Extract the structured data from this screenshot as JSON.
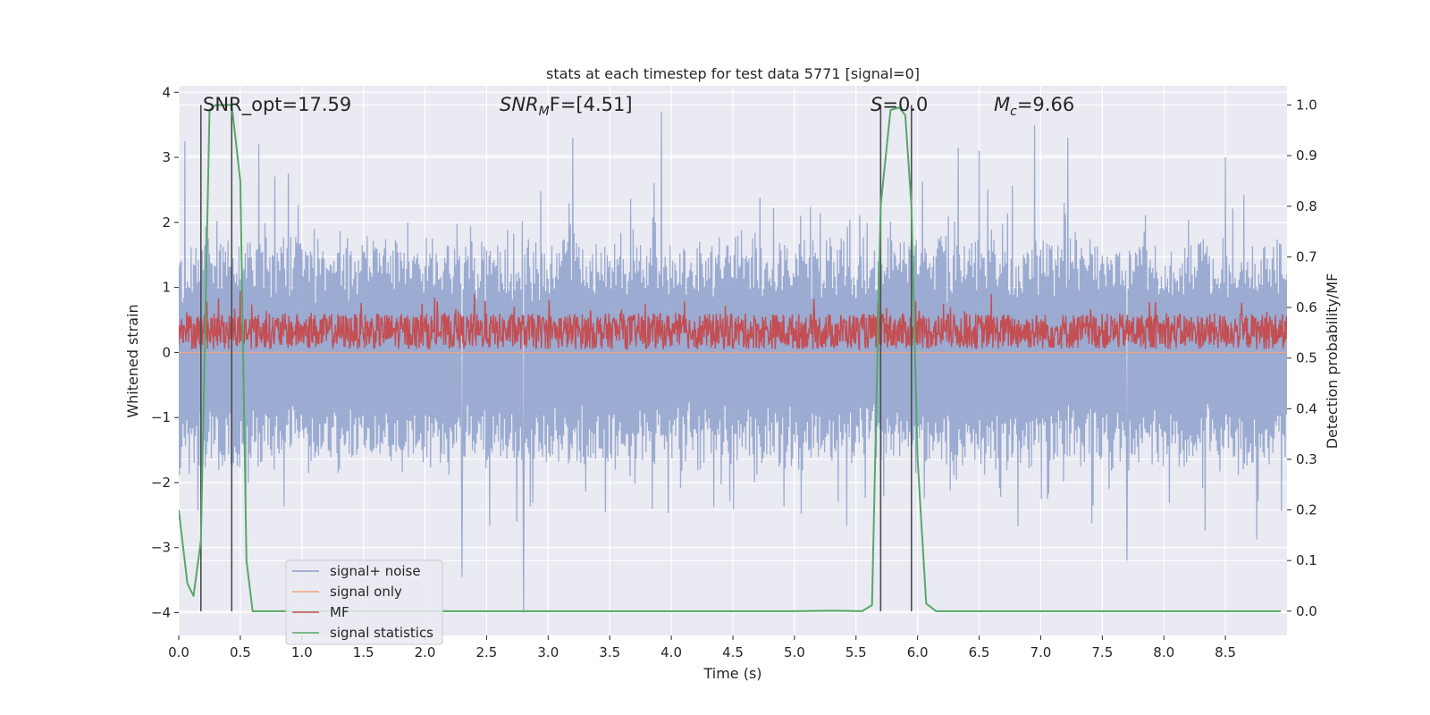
{
  "chart_data": {
    "type": "line",
    "title": "stats at each timestep for test data 5771 [signal=0]",
    "xlabel": "Time (s)",
    "ylabel_left": "Whitened strain",
    "ylabel_right": "Detection probability/MF",
    "xlim": [
      0.0,
      9.0
    ],
    "ylim_left": [
      -4.35,
      4.1
    ],
    "ylim_right": [
      -0.048,
      1.038
    ],
    "xticks": [
      "0.0",
      "0.5",
      "1.0",
      "1.5",
      "2.0",
      "2.5",
      "3.0",
      "3.5",
      "4.0",
      "4.5",
      "5.0",
      "5.5",
      "6.0",
      "6.5",
      "7.0",
      "7.5",
      "8.0",
      "8.5"
    ],
    "yticks_left": [
      "4",
      "3",
      "2",
      "1",
      "0",
      "−1",
      "−2",
      "−3",
      "−4"
    ],
    "yticks_left_values": [
      4,
      3,
      2,
      1,
      0,
      -1,
      -2,
      -3,
      -4
    ],
    "yticks_right": [
      "1.0",
      "0.9",
      "0.8",
      "0.7",
      "0.6",
      "0.5",
      "0.4",
      "0.3",
      "0.2",
      "0.1",
      "0.0"
    ],
    "yticks_right_values": [
      1.0,
      0.9,
      0.8,
      0.7,
      0.6,
      0.5,
      0.4,
      0.3,
      0.2,
      0.1,
      0.0
    ],
    "annotations": {
      "snr_opt": "SNR_opt=17.59",
      "snr_mf_name": "SNR",
      "snr_mf_sub": "M",
      "snr_mf_tail": "F=[4.51]",
      "s_name": "S",
      "s_value": "=0.0",
      "mc_name": "M",
      "mc_sub": "c",
      "mc_value": "=9.66"
    },
    "vertical_lines_x": [
      0.18,
      0.43,
      5.7,
      5.95
    ],
    "legend": {
      "placement": "lower-left",
      "entries": [
        {
          "label": "signal+ noise",
          "color": "#8da0cb"
        },
        {
          "label": "signal only",
          "color": "#f0a582"
        },
        {
          "label": "MF",
          "color": "#c44e52"
        },
        {
          "label": "signal statistics",
          "color": "#55a868"
        }
      ]
    },
    "series": [
      {
        "name": "signal statistics",
        "axis": "right",
        "x": [
          0.0,
          0.07,
          0.12,
          0.18,
          0.25,
          0.3,
          0.35,
          0.43,
          0.5,
          0.55,
          0.6,
          1.0,
          2.0,
          3.0,
          4.0,
          5.0,
          5.3,
          5.55,
          5.63,
          5.7,
          5.78,
          5.85,
          5.9,
          5.95,
          6.0,
          6.07,
          6.15,
          6.5,
          7.0,
          8.0,
          8.95
        ],
        "values": [
          0.2,
          0.055,
          0.03,
          0.14,
          0.99,
          1.0,
          1.0,
          1.0,
          0.85,
          0.1,
          0.0,
          0.0,
          0.0,
          0.0,
          0.0,
          0.0,
          0.001,
          0.0,
          0.012,
          0.8,
          0.99,
          0.995,
          0.98,
          0.8,
          0.3,
          0.015,
          0.0,
          0.0,
          0.0,
          0.0,
          0.0
        ]
      },
      {
        "name": "signal+ noise",
        "axis": "left",
        "approx_range": [
          -4.0,
          3.7
        ],
        "typical_band": [
          -1.7,
          1.7
        ],
        "peak_values": [
          {
            "x": 0.05,
            "y": 3.25
          },
          {
            "x": 0.65,
            "y": 3.2
          },
          {
            "x": 2.8,
            "y": -4.0
          },
          {
            "x": 3.2,
            "y": 3.3
          },
          {
            "x": 3.92,
            "y": 3.7
          },
          {
            "x": 6.33,
            "y": 3.15
          },
          {
            "x": 6.5,
            "y": 3.1
          },
          {
            "x": 6.95,
            "y": 3.5
          },
          {
            "x": 7.22,
            "y": 3.3
          },
          {
            "x": 8.5,
            "y": 3.0
          },
          {
            "x": 7.7,
            "y": -3.2
          },
          {
            "x": 2.3,
            "y": -3.45
          }
        ]
      },
      {
        "name": "MF",
        "axis": "left",
        "approx_range": [
          0.0,
          0.95
        ],
        "typical_band": [
          0.05,
          0.6
        ],
        "peak_values": [
          {
            "x": 0.5,
            "y": 0.95
          },
          {
            "x": 2.4,
            "y": 0.9
          },
          {
            "x": 6.6,
            "y": 0.9
          }
        ]
      },
      {
        "name": "signal only",
        "axis": "left",
        "values": [
          0,
          0
        ]
      }
    ]
  }
}
